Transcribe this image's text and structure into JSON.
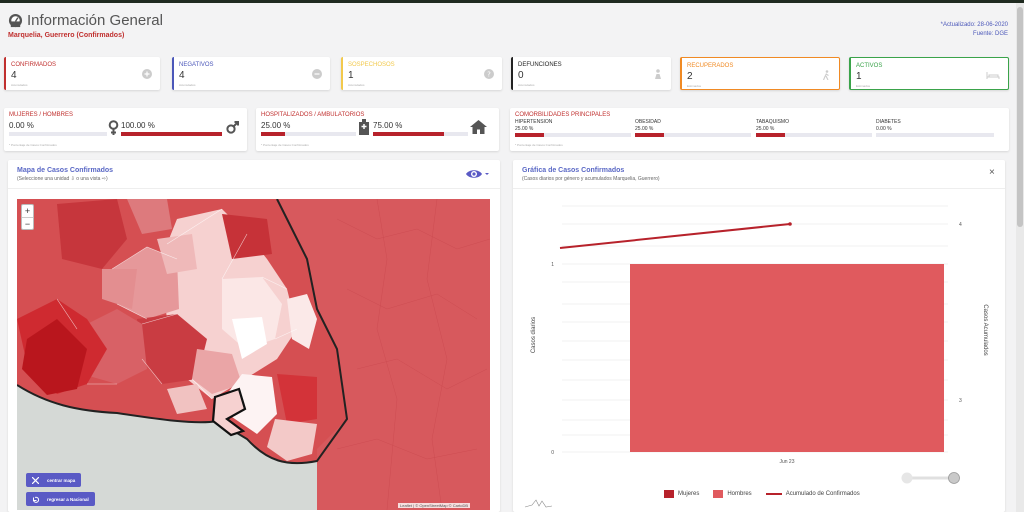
{
  "header": {
    "title": "Información General",
    "subtitle": "Marquelia, Guerrero (Confirmados)",
    "updated": "*Actualizado: 28-06-2020",
    "source": "Fuente: DGE"
  },
  "stats": [
    {
      "label": "CONFIRMADOS",
      "value": "4",
      "sub": "Acumulados",
      "color": "#c0302f",
      "icon": "plus-circle-icon"
    },
    {
      "label": "NEGATIVOS",
      "value": "4",
      "sub": "Acumulados",
      "color": "#4b57b9",
      "icon": "minus-circle-icon"
    },
    {
      "label": "SOSPECHOSOS",
      "value": "1",
      "sub": "Acumulados",
      "color": "#f2c94c",
      "icon": "question-circle-icon"
    },
    {
      "label": "DEFUNCIONES",
      "value": "0",
      "sub": "Acumulados",
      "color": "#222222",
      "icon": "person-icon"
    },
    {
      "label": "RECUPERADOS",
      "value": "2",
      "sub": "Estimados",
      "color": "#f08a24",
      "icon": "walking-icon"
    },
    {
      "label": "ACTIVOS",
      "value": "1",
      "sub": "Estimados",
      "color": "#3aa34a",
      "icon": "bed-icon"
    }
  ],
  "sex": {
    "title": "MUJERES / HOMBRES",
    "women_pct": "0.00 %",
    "men_pct": "100.00 %",
    "women_value": 0.0,
    "men_value": 100.0,
    "note": "* Porcentaje de Casos Confirmados"
  },
  "hospital": {
    "title": "HOSPITALIZADOS / AMBULATORIOS",
    "hosp_pct": "25.00 %",
    "amb_pct": "75.00 %",
    "hosp_value": 25.0,
    "amb_value": 75.0,
    "note": "* Porcentaje de Casos Confirmados"
  },
  "comorb": {
    "title": "COMORBILIDADES PRINCIPALES",
    "items": [
      {
        "label": "HIPERTENSION",
        "pct": "25.00 %",
        "value": 25.0
      },
      {
        "label": "OBESIDAD",
        "pct": "25.00 %",
        "value": 25.0
      },
      {
        "label": "TABAQUISMO",
        "pct": "25.00 %",
        "value": 25.0
      },
      {
        "label": "DIABETES",
        "pct": "0.00 %",
        "value": 0.0
      }
    ],
    "note": "* Porcentaje de Casos Confirmados"
  },
  "map_panel": {
    "title": "Mapa de Casos Confirmados",
    "subtitle": "(Seleccione una unidad  ⇩  o una vista  ⇨)",
    "zoom_in": "+",
    "zoom_out": "−",
    "center_button": "centrar mapa",
    "back_button": "regresar a Nacional",
    "attribution": "Leaflet | © OpenStreetMap © CartoDB"
  },
  "chart_panel": {
    "title": "Gráfica de Casos Confirmados",
    "subtitle": "(Casos diarios por género y acumulados Marquelia, Guerrero)",
    "close": "×"
  },
  "chart_data": {
    "type": "bar",
    "categories": [
      "Jun 23"
    ],
    "series": [
      {
        "name": "Mujeres",
        "values": [
          0
        ],
        "color": "#b7222b"
      },
      {
        "name": "Hombres",
        "values": [
          1
        ],
        "color": "#e05a5e"
      },
      {
        "name": "Acumulado de Confirmados",
        "type": "line",
        "values": [
          4
        ],
        "color": "#b7222b"
      }
    ],
    "ylabel": "Casos diarios",
    "y2label": "Casos Acumulados",
    "yticks": [
      "0",
      "1"
    ],
    "y2ticks": [
      "3",
      "4"
    ],
    "legend": "bottom"
  }
}
